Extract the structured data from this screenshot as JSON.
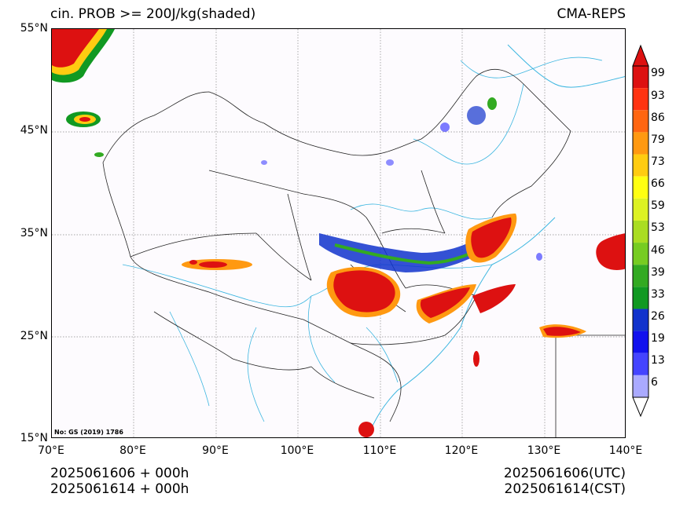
{
  "header": {
    "title_left": "cin. PROB >= 200J/kg(shaded)",
    "title_right": "CMA-REPS"
  },
  "map": {
    "lat_ticks": [
      "55°N",
      "45°N",
      "35°N",
      "25°N",
      "15°N"
    ],
    "lon_ticks": [
      "70°E",
      "80°E",
      "90°E",
      "100°E",
      "110°E",
      "120°E",
      "130°E",
      "140°E"
    ],
    "note": "No: GS (2019) 1786"
  },
  "colorbar": {
    "labels": [
      "99",
      "93",
      "86",
      "79",
      "73",
      "66",
      "59",
      "53",
      "46",
      "39",
      "33",
      "26",
      "19",
      "13",
      "6"
    ],
    "colors": [
      "#dd1111",
      "#ff3311",
      "#ff6611",
      "#ff9911",
      "#ffcc11",
      "#ffff11",
      "#ddf222",
      "#aadd22",
      "#77cc22",
      "#33aa22",
      "#119922",
      "#1133cc",
      "#1111ee",
      "#4444ff",
      "#aaaaff"
    ]
  },
  "footer": {
    "left_line1": "2025061606  +  000h",
    "left_line2": "2025061614  +  000h",
    "right_line1": "2025061606(UTC)",
    "right_line2": "2025061614(CST)"
  }
}
